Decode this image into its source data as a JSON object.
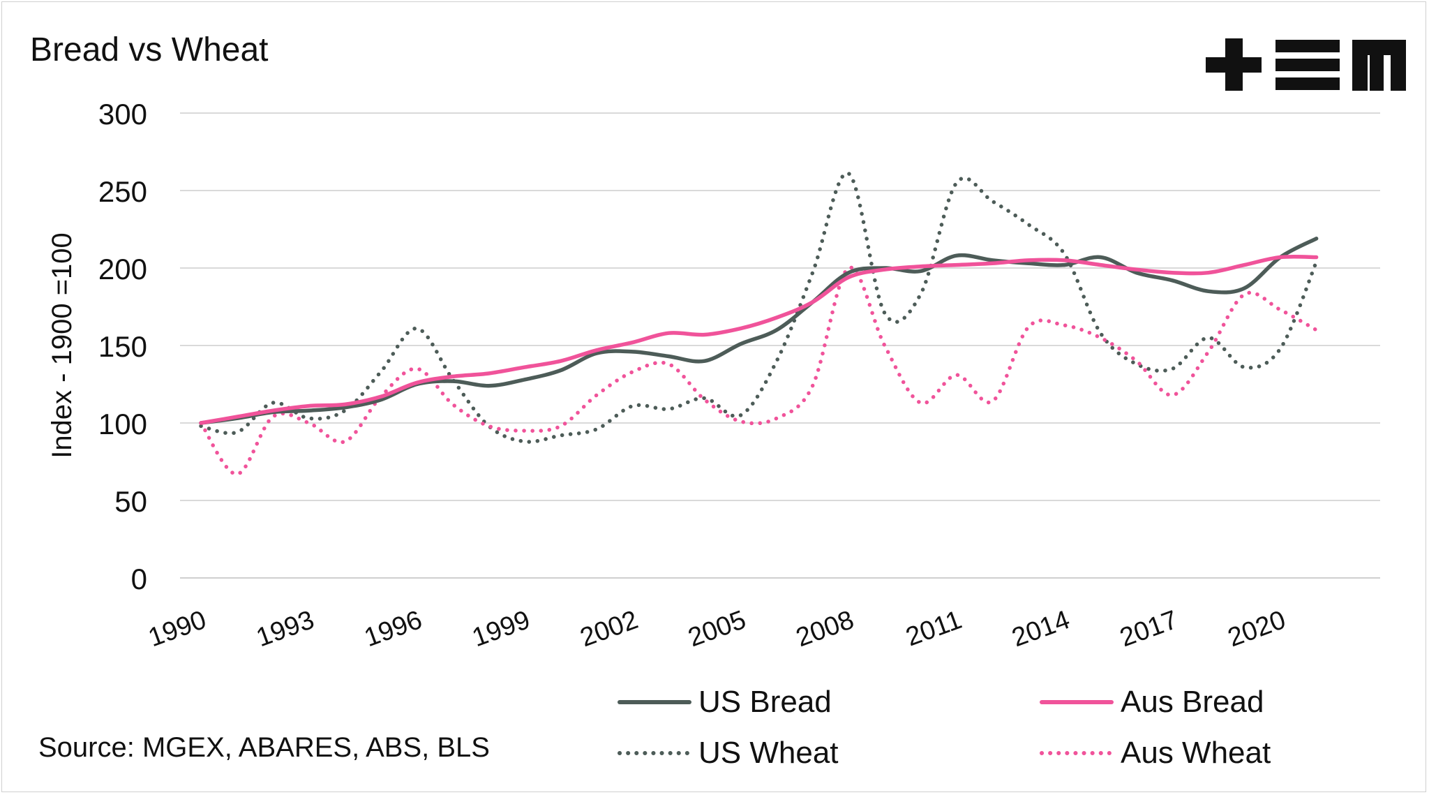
{
  "chart_data": {
    "type": "line",
    "title": "Bread vs Wheat",
    "ylabel": "Index - 1900 =100",
    "xlabel": "",
    "ylim": [
      0,
      300
    ],
    "yticks": [
      0,
      50,
      100,
      150,
      200,
      250,
      300
    ],
    "xticks": [
      "1990",
      "1993",
      "1996",
      "1999",
      "2002",
      "2005",
      "2008",
      "2011",
      "2014",
      "2017",
      "2020"
    ],
    "grid": true,
    "legend_position": "bottom",
    "x": [
      1990,
      1991,
      1992,
      1993,
      1994,
      1995,
      1996,
      1997,
      1998,
      1999,
      2000,
      2001,
      2002,
      2003,
      2004,
      2005,
      2006,
      2007,
      2008,
      2009,
      2010,
      2011,
      2012,
      2013,
      2014,
      2015,
      2016,
      2017,
      2018,
      2019,
      2020,
      2021
    ],
    "series": [
      {
        "name": "US Bread",
        "style": "solid",
        "color": "#4d5c58",
        "values": [
          100,
          103,
          107,
          108,
          110,
          115,
          125,
          127,
          124,
          128,
          134,
          145,
          146,
          143,
          140,
          151,
          160,
          178,
          197,
          200,
          198,
          208,
          205,
          203,
          202,
          207,
          197,
          192,
          185,
          187,
          207,
          219
        ]
      },
      {
        "name": "Aus Bread",
        "style": "solid",
        "color": "#f0539a",
        "values": [
          100,
          104,
          108,
          111,
          112,
          117,
          126,
          130,
          132,
          136,
          140,
          147,
          152,
          158,
          157,
          161,
          168,
          178,
          194,
          199,
          201,
          202,
          203,
          205,
          205,
          202,
          199,
          197,
          197,
          202,
          207,
          207
        ]
      },
      {
        "name": "US Wheat",
        "style": "dotted",
        "color": "#4d5c58",
        "values": [
          98,
          94,
          113,
          103,
          108,
          133,
          161,
          128,
          98,
          88,
          92,
          96,
          111,
          109,
          116,
          105,
          140,
          197,
          261,
          171,
          183,
          255,
          243,
          228,
          209,
          158,
          138,
          135,
          155,
          136,
          148,
          204
        ]
      },
      {
        "name": "Aus Wheat",
        "style": "dotted",
        "color": "#f0539a",
        "values": [
          100,
          67,
          104,
          100,
          88,
          117,
          135,
          112,
          98,
          95,
          98,
          118,
          133,
          138,
          115,
          101,
          103,
          124,
          200,
          150,
          113,
          131,
          114,
          162,
          163,
          155,
          140,
          118,
          146,
          183,
          173,
          160
        ]
      }
    ]
  },
  "source": "Source: MGEX, ABARES, ABS, BLS",
  "logo": {
    "text": "+EM",
    "color": "#111111"
  }
}
